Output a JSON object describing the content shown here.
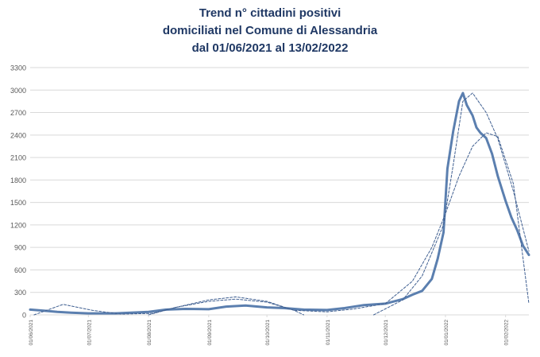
{
  "chart_data": {
    "type": "line",
    "title": [
      "Trend n° cittadini positivi",
      "domiciliati nel Comune di Alessandria",
      "dal 01/06/2021 al 13/02/2022"
    ],
    "xlabel": "",
    "ylabel": "",
    "x_range": [
      "01/06/2021",
      "13/02/2022"
    ],
    "ylim": [
      0,
      3300
    ],
    "yticks": [
      0,
      300,
      600,
      900,
      1200,
      1500,
      1800,
      2100,
      2400,
      2700,
      3000,
      3300
    ],
    "xticks": [
      "01/06/2021",
      "01/07/2021",
      "01/08/2021",
      "01/09/2021",
      "01/10/2021",
      "01/11/2021",
      "01/12/2021",
      "01/01/2022",
      "01/02/2022"
    ],
    "grid": true,
    "legend": "none",
    "colors": {
      "series": "#5b7faf",
      "trend": "#3f5f91",
      "grid": "#d9d9d9",
      "axis_text": "#595959",
      "title": "#1f3864"
    },
    "series": [
      {
        "style": "solid",
        "x": [
          "01/06/2021",
          "08/06/2021",
          "15/06/2021",
          "22/06/2021",
          "01/07/2021",
          "15/07/2021",
          "01/08/2021",
          "10/08/2021",
          "20/08/2021",
          "01/09/2021",
          "10/09/2021",
          "20/09/2021",
          "01/10/2021",
          "10/10/2021",
          "20/10/2021",
          "01/11/2021",
          "10/11/2021",
          "20/11/2021",
          "01/12/2021",
          "10/12/2021",
          "15/12/2021",
          "20/12/2021",
          "25/12/2021",
          "28/12/2021",
          "31/12/2021",
          "02/01/2022",
          "05/01/2022",
          "08/01/2022",
          "10/01/2022",
          "12/01/2022",
          "15/01/2022",
          "17/01/2022",
          "19/01/2022",
          "22/01/2022",
          "25/01/2022",
          "28/01/2022",
          "01/02/2022",
          "04/02/2022",
          "07/02/2022",
          "10/02/2022",
          "13/02/2022"
        ],
        "y": [
          70,
          55,
          40,
          30,
          20,
          20,
          40,
          70,
          80,
          75,
          110,
          125,
          100,
          90,
          70,
          65,
          90,
          130,
          150,
          210,
          270,
          320,
          480,
          750,
          1100,
          1950,
          2450,
          2850,
          2960,
          2800,
          2660,
          2500,
          2430,
          2360,
          2150,
          1850,
          1520,
          1300,
          1130,
          920,
          800
        ]
      },
      {
        "style": "dashed",
        "x": [
          "03/06/2021",
          "18/06/2021",
          "03/07/2021",
          "18/07/2021",
          "03/08/2021",
          "15/08/2021",
          "01/09/2021",
          "15/09/2021",
          "01/10/2021",
          "15/10/2021",
          "01/11/2021",
          "15/11/2021",
          "01/12/2021",
          "15/12/2021",
          "25/12/2021",
          "01/01/2022",
          "08/01/2022",
          "15/01/2022",
          "22/01/2022",
          "28/01/2022",
          "05/02/2022",
          "13/02/2022"
        ],
        "y": [
          0,
          140,
          60,
          10,
          20,
          100,
          180,
          210,
          170,
          60,
          40,
          80,
          150,
          450,
          900,
          1350,
          1850,
          2250,
          2430,
          2380,
          1750,
          150
        ]
      },
      {
        "style": "dashed",
        "x": [
          "01/08/2021",
          "15/08/2021",
          "01/09/2021",
          "15/09/2021",
          "01/10/2021",
          "15/10/2021",
          "20/10/2021"
        ],
        "y": [
          0,
          100,
          200,
          240,
          180,
          60,
          0
        ]
      },
      {
        "style": "dashed",
        "x": [
          "25/11/2021",
          "01/12/2021",
          "10/12/2021",
          "20/12/2021",
          "31/12/2021",
          "05/01/2022",
          "10/01/2022",
          "15/01/2022",
          "22/01/2022",
          "28/01/2022",
          "05/02/2022",
          "13/02/2022"
        ],
        "y": [
          0,
          80,
          200,
          520,
          1200,
          2000,
          2850,
          2960,
          2700,
          2350,
          1650,
          850
        ]
      }
    ]
  }
}
